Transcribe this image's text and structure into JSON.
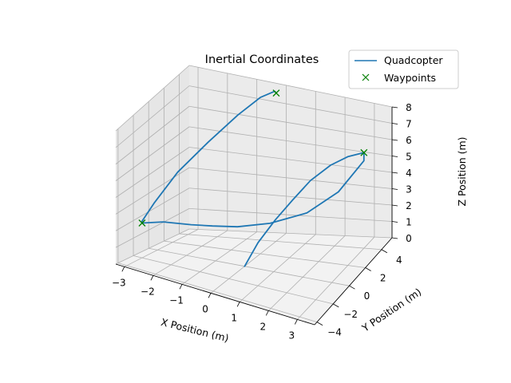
{
  "chart_data": {
    "type": "line",
    "projection": "3d",
    "title": "Inertial Coordinates",
    "xlabel": "X Position (m)",
    "ylabel": "Y Position (m)",
    "zlabel": "Z Position (m)",
    "xlim": [
      -3.3,
      3.6
    ],
    "ylim": [
      -4.3,
      5.3
    ],
    "zlim": [
      0,
      8
    ],
    "xticks": [
      -3,
      -2,
      -1,
      0,
      1,
      2,
      3
    ],
    "yticks": [
      -4,
      -2,
      0,
      2,
      4
    ],
    "zticks": [
      0,
      1,
      2,
      3,
      4,
      5,
      6,
      7,
      8
    ],
    "grid": true,
    "legend_position": "top-right",
    "series": [
      {
        "name": "Quadcopter",
        "kind": "line",
        "color": "#1f77b4",
        "x": [
          0.0,
          0.3,
          0.7,
          1.1,
          1.5,
          2.0,
          2.5,
          3.0,
          3.0,
          3.0,
          2.4,
          1.6,
          0.6,
          -0.3,
          -1.0,
          -1.6,
          -2.4,
          -3.0,
          -3.0,
          -2.8,
          -2.3,
          -1.6,
          -0.9,
          -0.4,
          -0.1,
          -0.1
        ],
        "y": [
          0.0,
          0.6,
          1.3,
          2.0,
          2.8,
          3.5,
          3.8,
          4.0,
          4.0,
          4.0,
          3.0,
          2.0,
          1.0,
          0.2,
          -0.4,
          -0.9,
          -1.5,
          -2.0,
          -2.0,
          -1.2,
          0.0,
          1.3,
          2.5,
          3.5,
          4.2,
          4.4
        ],
        "z": [
          0.0,
          1.3,
          2.5,
          3.5,
          4.4,
          5.1,
          5.6,
          5.9,
          5.8,
          5.4,
          3.9,
          2.9,
          2.4,
          2.2,
          2.2,
          2.2,
          2.2,
          2.0,
          2.1,
          3.0,
          4.6,
          6.1,
          7.4,
          8.1,
          8.2,
          8.0
        ]
      },
      {
        "name": "Waypoints",
        "kind": "scatter",
        "marker": "x",
        "color": "#008000",
        "x": [
          3.0,
          -3.0,
          -0.1
        ],
        "y": [
          4.0,
          -2.0,
          4.4
        ],
        "z": [
          5.9,
          2.0,
          8.0
        ]
      }
    ]
  }
}
